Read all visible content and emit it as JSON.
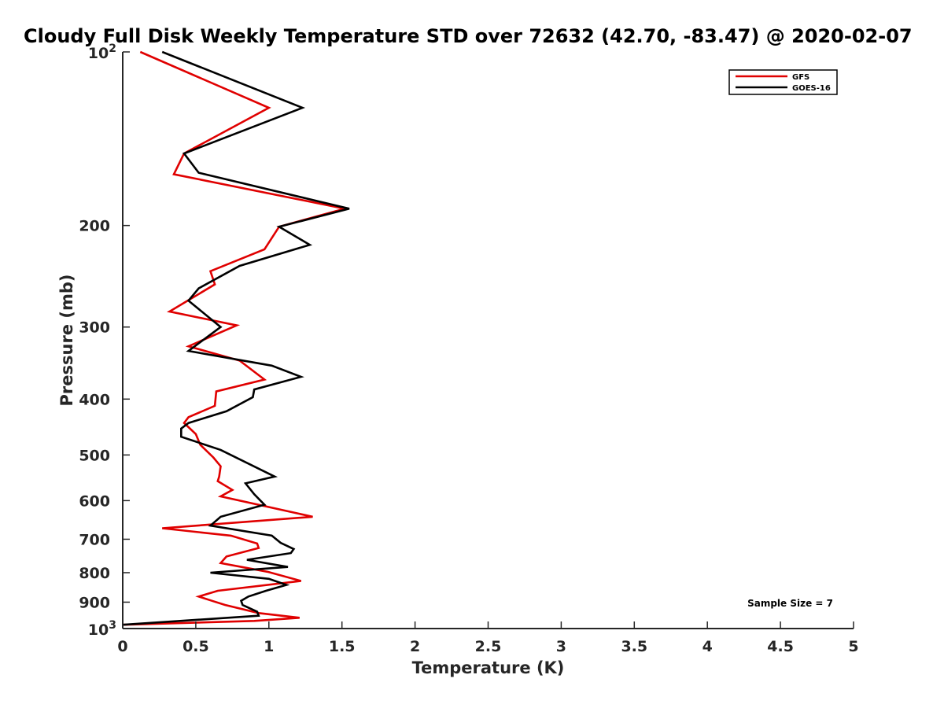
{
  "chart_data": {
    "type": "line",
    "title": "Cloudy Full Disk Weekly Temperature STD over 72632 (42.70, -83.47) @ 2020-02-07",
    "xlabel": "Temperature (K)",
    "ylabel": "Pressure (mb)",
    "xlim": [
      0,
      5
    ],
    "ylim": [
      100,
      1000
    ],
    "yscale": "log",
    "y_reversed": true,
    "grid": false,
    "legend_position": "top-right",
    "x_ticks": [
      "0",
      "0.5",
      "1",
      "1.5",
      "2",
      "2.5",
      "3",
      "3.5",
      "4",
      "4.5",
      "5"
    ],
    "y_ticks": [
      {
        "value": 100,
        "base": "10",
        "exp": "2",
        "label": ""
      },
      {
        "value": 200,
        "label": "200"
      },
      {
        "value": 300,
        "label": "300"
      },
      {
        "value": 400,
        "label": "400"
      },
      {
        "value": 500,
        "label": "500"
      },
      {
        "value": 600,
        "label": "600"
      },
      {
        "value": 700,
        "label": "700"
      },
      {
        "value": 800,
        "label": "800"
      },
      {
        "value": 900,
        "label": "900"
      },
      {
        "value": 1000,
        "base": "10",
        "exp": "3",
        "label": ""
      }
    ],
    "annotation": "Sample Size = 7",
    "series": [
      {
        "name": "GFS",
        "color": "#e00000",
        "points": [
          [
            0.12,
            100
          ],
          [
            1.0,
            125
          ],
          [
            0.42,
            150
          ],
          [
            0.35,
            163
          ],
          [
            1.52,
            187
          ],
          [
            1.07,
            201
          ],
          [
            0.97,
            220
          ],
          [
            0.6,
            240
          ],
          [
            0.63,
            253
          ],
          [
            0.32,
            282
          ],
          [
            0.78,
            298
          ],
          [
            0.45,
            324
          ],
          [
            0.8,
            343
          ],
          [
            0.97,
            370
          ],
          [
            0.64,
            388
          ],
          [
            0.63,
            411
          ],
          [
            0.45,
            430
          ],
          [
            0.42,
            440
          ],
          [
            0.5,
            460
          ],
          [
            0.53,
            480
          ],
          [
            0.62,
            505
          ],
          [
            0.67,
            523
          ],
          [
            0.66,
            545
          ],
          [
            0.65,
            555
          ],
          [
            0.75,
            575
          ],
          [
            0.67,
            590
          ],
          [
            1.3,
            640
          ],
          [
            0.27,
            670
          ],
          [
            0.74,
            690
          ],
          [
            0.92,
            712
          ],
          [
            0.93,
            725
          ],
          [
            0.71,
            750
          ],
          [
            0.67,
            770
          ],
          [
            0.99,
            797
          ],
          [
            1.22,
            827
          ],
          [
            0.65,
            860
          ],
          [
            0.52,
            880
          ],
          [
            0.61,
            895
          ],
          [
            0.7,
            910
          ],
          [
            0.93,
            940
          ],
          [
            1.21,
            958
          ],
          [
            0.9,
            970
          ],
          [
            0.0,
            985
          ]
        ]
      },
      {
        "name": "GOES-16",
        "color": "#000000",
        "points": [
          [
            0.27,
            100
          ],
          [
            1.23,
            125
          ],
          [
            0.42,
            150
          ],
          [
            0.52,
            162
          ],
          [
            1.55,
            187
          ],
          [
            1.07,
            201
          ],
          [
            1.28,
            216
          ],
          [
            0.8,
            235
          ],
          [
            0.52,
            257
          ],
          [
            0.45,
            270
          ],
          [
            0.67,
            300
          ],
          [
            0.45,
            330
          ],
          [
            1.02,
            350
          ],
          [
            1.22,
            366
          ],
          [
            0.9,
            385
          ],
          [
            0.89,
            397
          ],
          [
            0.71,
            420
          ],
          [
            0.45,
            440
          ],
          [
            0.4,
            450
          ],
          [
            0.4,
            465
          ],
          [
            0.67,
            490
          ],
          [
            1.04,
            545
          ],
          [
            0.84,
            560
          ],
          [
            0.9,
            585
          ],
          [
            0.97,
            610
          ],
          [
            0.67,
            640
          ],
          [
            0.6,
            663
          ],
          [
            1.02,
            690
          ],
          [
            1.08,
            710
          ],
          [
            1.17,
            728
          ],
          [
            1.15,
            740
          ],
          [
            0.85,
            760
          ],
          [
            1.13,
            782
          ],
          [
            0.6,
            800
          ],
          [
            1.0,
            820
          ],
          [
            1.12,
            840
          ],
          [
            0.98,
            860
          ],
          [
            0.86,
            880
          ],
          [
            0.81,
            895
          ],
          [
            0.82,
            910
          ],
          [
            0.92,
            935
          ],
          [
            0.93,
            950
          ],
          [
            0.0,
            985
          ]
        ]
      }
    ]
  }
}
